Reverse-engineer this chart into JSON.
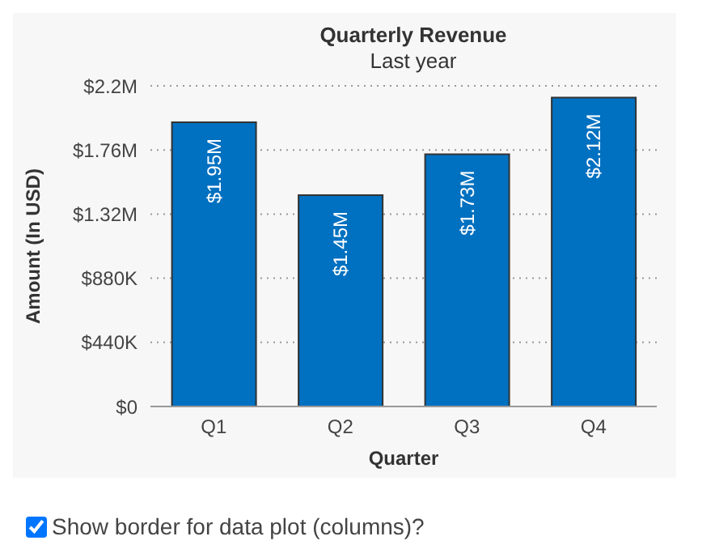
{
  "chart_data": {
    "type": "bar",
    "title": "Quarterly Revenue",
    "subtitle": "Last year",
    "xlabel": "Quarter",
    "ylabel": "Amount (In USD)",
    "categories": [
      "Q1",
      "Q2",
      "Q3",
      "Q4"
    ],
    "values": [
      1950000,
      1450000,
      1730000,
      2120000
    ],
    "value_labels": [
      "$1.95M",
      "$1.45M",
      "$1.73M",
      "$2.12M"
    ],
    "color": "#0070c0",
    "ylim": [
      0,
      2200000
    ],
    "yticks": [
      {
        "value": 0,
        "label": "$0"
      },
      {
        "value": 440000,
        "label": "$440K"
      },
      {
        "value": 880000,
        "label": "$880K"
      },
      {
        "value": 1320000,
        "label": "$1.32M"
      },
      {
        "value": 1760000,
        "label": "$1.76M"
      },
      {
        "value": 2200000,
        "label": "$2.2M"
      }
    ],
    "grid": "y",
    "legend": false,
    "annotations": [
      "Show border for data plot (columns)?"
    ]
  }
}
